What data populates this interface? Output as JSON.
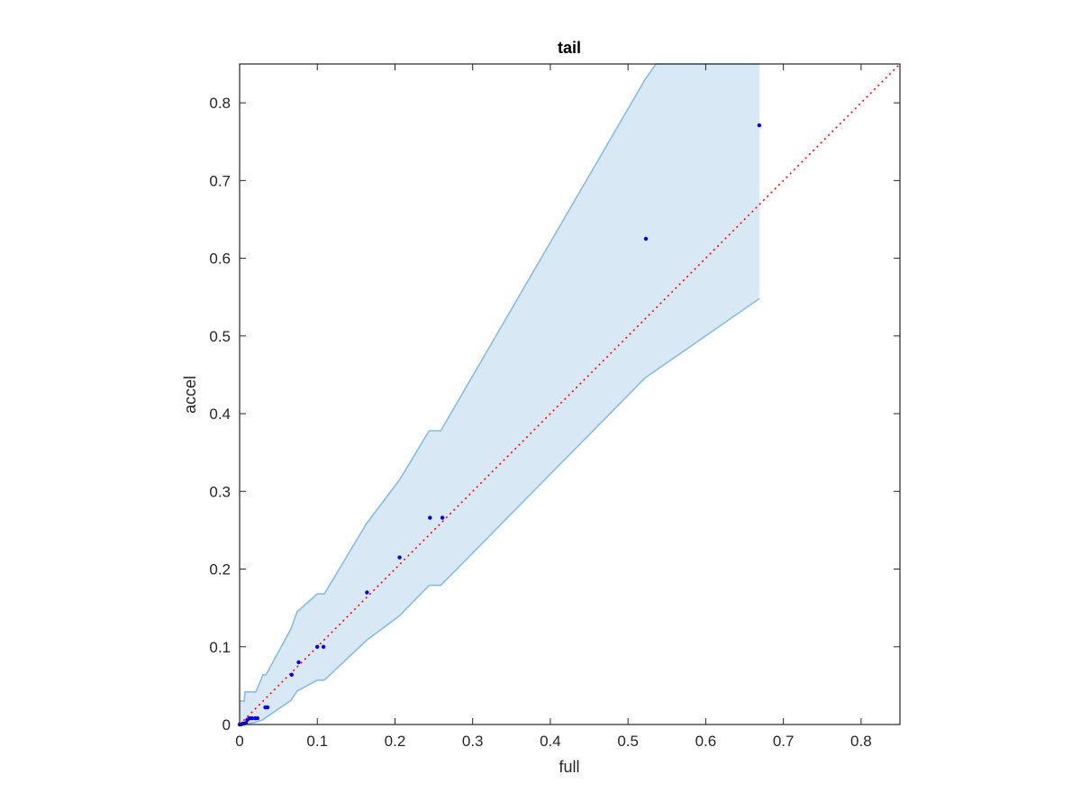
{
  "chart_data": {
    "type": "scatter",
    "title": "tail",
    "xlabel": "full",
    "ylabel": "accel",
    "xlim": [
      0,
      0.85
    ],
    "ylim": [
      0,
      0.85
    ],
    "xticks": [
      0,
      0.1,
      0.2,
      0.3,
      0.4,
      0.5,
      0.6,
      0.7,
      0.8
    ],
    "yticks": [
      0,
      0.1,
      0.2,
      0.3,
      0.4,
      0.5,
      0.6,
      0.7,
      0.8
    ],
    "xtick_labels": [
      "0",
      "0.1",
      "0.2",
      "0.3",
      "0.4",
      "0.5",
      "0.6",
      "0.7",
      "0.8"
    ],
    "ytick_labels": [
      "0",
      "0.1",
      "0.2",
      "0.3",
      "0.4",
      "0.5",
      "0.6",
      "0.7",
      "0.8"
    ],
    "grid": false,
    "reference_line": {
      "from": [
        0,
        0
      ],
      "to": [
        0.85,
        0.85
      ],
      "style": "dotted",
      "color": "#ff0000"
    },
    "band": {
      "fill": "#d9e8f5",
      "stroke": "#88bde0",
      "upper": [
        [
          0,
          0.03
        ],
        [
          0.006,
          0.03
        ],
        [
          0.007,
          0.042
        ],
        [
          0.021,
          0.042
        ],
        [
          0.03,
          0.064
        ],
        [
          0.034,
          0.064
        ],
        [
          0.066,
          0.123
        ],
        [
          0.074,
          0.145
        ],
        [
          0.1,
          0.168
        ],
        [
          0.109,
          0.168
        ],
        [
          0.163,
          0.258
        ],
        [
          0.206,
          0.315
        ],
        [
          0.244,
          0.378
        ],
        [
          0.259,
          0.378
        ],
        [
          0.522,
          0.83
        ],
        [
          0.536,
          0.85
        ],
        [
          0.669,
          0.85
        ]
      ],
      "lower": [
        [
          0.669,
          0.548
        ],
        [
          0.522,
          0.446
        ],
        [
          0.259,
          0.179
        ],
        [
          0.244,
          0.179
        ],
        [
          0.206,
          0.14
        ],
        [
          0.163,
          0.108
        ],
        [
          0.109,
          0.057
        ],
        [
          0.1,
          0.057
        ],
        [
          0.074,
          0.043
        ],
        [
          0.066,
          0.031
        ],
        [
          0.034,
          0.009
        ],
        [
          0.03,
          0.006
        ],
        [
          0.021,
          0.003
        ],
        [
          0.007,
          0.0
        ],
        [
          0,
          0
        ]
      ]
    },
    "series": [
      {
        "color": "#0000ee",
        "points": [
          [
            0.0,
            0.0
          ],
          [
            0.002,
            0.0
          ],
          [
            0.004,
            0.001
          ],
          [
            0.006,
            0.001
          ],
          [
            0.008,
            0.002
          ],
          [
            0.01,
            0.006
          ],
          [
            0.013,
            0.008
          ],
          [
            0.016,
            0.008
          ],
          [
            0.02,
            0.008
          ],
          [
            0.023,
            0.008
          ],
          [
            0.033,
            0.022
          ],
          [
            0.036,
            0.022
          ],
          [
            0.067,
            0.064
          ],
          [
            0.076,
            0.08
          ],
          [
            0.1,
            0.1
          ],
          [
            0.108,
            0.1
          ],
          [
            0.164,
            0.17
          ],
          [
            0.206,
            0.215
          ],
          [
            0.245,
            0.266
          ],
          [
            0.261,
            0.266
          ],
          [
            0.523,
            0.625
          ],
          [
            0.669,
            0.771
          ]
        ]
      }
    ]
  }
}
